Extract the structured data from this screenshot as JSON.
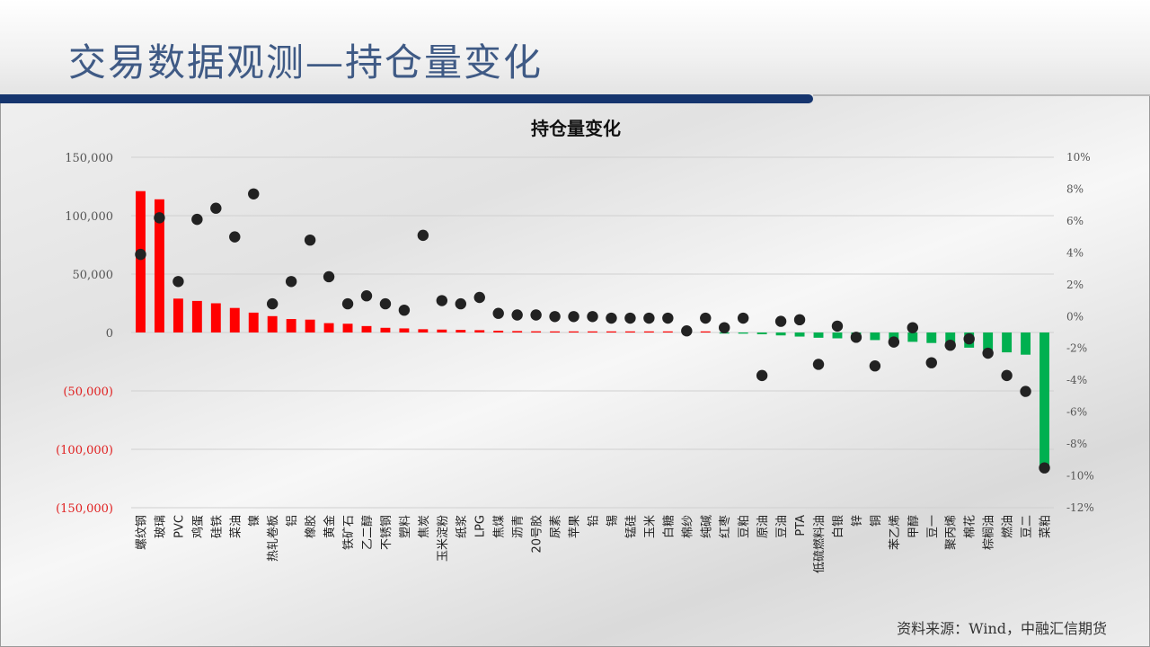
{
  "slide": {
    "title": "交易数据观测—持仓量变化",
    "source": "资料来源：Wind，中融汇信期货"
  },
  "colors": {
    "positive": "#ff0000",
    "negative": "#00b050",
    "dot": "#222222",
    "title": "#3f5a85",
    "band": "#16356e"
  },
  "chart_data": {
    "type": "bar",
    "title": "持仓量变化",
    "categories": [
      "螺纹钢",
      "玻璃",
      "PVC",
      "鸡蛋",
      "硅铁",
      "菜油",
      "镍",
      "热轧卷板",
      "铝",
      "橡胶",
      "黄金",
      "铁矿石",
      "乙二醇",
      "不锈钢",
      "塑料",
      "焦炭",
      "玉米淀粉",
      "纸浆",
      "LPG",
      "焦煤",
      "沥青",
      "20号胶",
      "尿素",
      "苹果",
      "铅",
      "锡",
      "锰硅",
      "玉米",
      "白糖",
      "棉纱",
      "纯碱",
      "红枣",
      "豆粕",
      "原油",
      "豆油",
      "PTA",
      "低硫燃料油",
      "白银",
      "锌",
      "铜",
      "苯乙烯",
      "甲醇",
      "豆一",
      "聚丙烯",
      "棉花",
      "棕榈油",
      "燃油",
      "豆二",
      "菜粕"
    ],
    "series": [
      {
        "type": "bar",
        "axis": "left",
        "values": [
          121000,
          114000,
          29000,
          27000,
          25000,
          21000,
          17000,
          14000,
          11500,
          11000,
          8000,
          7500,
          5500,
          4000,
          3500,
          2800,
          2500,
          2200,
          2000,
          1500,
          1200,
          1000,
          900,
          800,
          600,
          400,
          300,
          200,
          150,
          100,
          50,
          -500,
          -1000,
          -1500,
          -2500,
          -3500,
          -4500,
          -5000,
          -6000,
          -6500,
          -7000,
          -8000,
          -9000,
          -11000,
          -13000,
          -15000,
          -17000,
          -19000,
          -117000
        ]
      },
      {
        "type": "scatter",
        "axis": "right",
        "values": [
          3.9,
          6.2,
          2.2,
          6.1,
          6.8,
          5.0,
          7.7,
          0.8,
          2.2,
          4.8,
          2.5,
          0.8,
          1.3,
          0.8,
          0.4,
          5.1,
          1.0,
          0.8,
          1.2,
          0.2,
          0.1,
          0.1,
          0.0,
          0.0,
          0.0,
          -0.1,
          -0.1,
          -0.1,
          -0.1,
          -0.9,
          -0.1,
          -0.7,
          -0.1,
          -3.7,
          -0.3,
          -0.2,
          -3.0,
          -0.6,
          -1.3,
          -3.1,
          -1.6,
          -0.7,
          -2.9,
          -1.8,
          -1.4,
          -2.3,
          -3.7,
          -4.7,
          -9.5
        ]
      }
    ],
    "yleft": {
      "min": -150000,
      "max": 150000,
      "ticks": [
        "150,000",
        "100,000",
        "50,000",
        "0",
        "(50,000)",
        "(100,000)",
        "(150,000)"
      ]
    },
    "yright": {
      "min": -12,
      "max": 10,
      "ticks": [
        "10%",
        "8%",
        "6%",
        "4%",
        "2%",
        "0%",
        "-2%",
        "-4%",
        "-6%",
        "-8%",
        "-10%",
        "-12%"
      ]
    },
    "grid": true,
    "legend": "none"
  }
}
